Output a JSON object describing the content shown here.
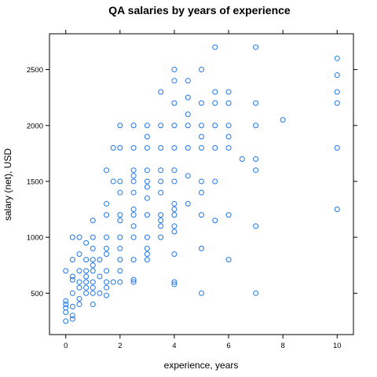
{
  "chart_data": {
    "type": "scatter",
    "title": "QA salaries by years of experience",
    "xlabel": "experience, years",
    "ylabel": "salary (net), USD",
    "xlim": [
      -0.6,
      10.6
    ],
    "ylim": [
      130,
      2820
    ],
    "xticks": [
      0,
      2,
      4,
      6,
      8,
      10
    ],
    "yticks": [
      500,
      1000,
      1500,
      2000,
      2500
    ],
    "grid": false,
    "legend": "none",
    "point_color": "#1f77e8",
    "points": [
      [
        0,
        250
      ],
      [
        0,
        330
      ],
      [
        0,
        370
      ],
      [
        0,
        400
      ],
      [
        0,
        430
      ],
      [
        0,
        700
      ],
      [
        0.25,
        270
      ],
      [
        0.25,
        300
      ],
      [
        0.25,
        380
      ],
      [
        0.25,
        500
      ],
      [
        0.25,
        620
      ],
      [
        0.25,
        650
      ],
      [
        0.25,
        800
      ],
      [
        0.25,
        1000
      ],
      [
        0.5,
        400
      ],
      [
        0.5,
        450
      ],
      [
        0.5,
        550
      ],
      [
        0.5,
        600
      ],
      [
        0.5,
        700
      ],
      [
        0.5,
        850
      ],
      [
        0.5,
        1000
      ],
      [
        0.75,
        500
      ],
      [
        0.75,
        550
      ],
      [
        0.75,
        600
      ],
      [
        0.75,
        650
      ],
      [
        0.75,
        700
      ],
      [
        0.75,
        800
      ],
      [
        0.75,
        950
      ],
      [
        1,
        400
      ],
      [
        1,
        500
      ],
      [
        1,
        550
      ],
      [
        1,
        600
      ],
      [
        1,
        700
      ],
      [
        1,
        750
      ],
      [
        1,
        800
      ],
      [
        1,
        900
      ],
      [
        1,
        1000
      ],
      [
        1,
        1150
      ],
      [
        1.25,
        500
      ],
      [
        1.25,
        650
      ],
      [
        1.25,
        800
      ],
      [
        1.5,
        480
      ],
      [
        1.5,
        550
      ],
      [
        1.5,
        600
      ],
      [
        1.5,
        700
      ],
      [
        1.5,
        850
      ],
      [
        1.5,
        900
      ],
      [
        1.5,
        1000
      ],
      [
        1.5,
        1200
      ],
      [
        1.5,
        1300
      ],
      [
        1.5,
        1600
      ],
      [
        1.75,
        600
      ],
      [
        1.75,
        1500
      ],
      [
        1.75,
        1800
      ],
      [
        2,
        600
      ],
      [
        2,
        700
      ],
      [
        2,
        800
      ],
      [
        2,
        900
      ],
      [
        2,
        1000
      ],
      [
        2,
        1150
      ],
      [
        2,
        1200
      ],
      [
        2,
        1400
      ],
      [
        2,
        1500
      ],
      [
        2,
        1800
      ],
      [
        2,
        2000
      ],
      [
        2.5,
        600
      ],
      [
        2.5,
        620
      ],
      [
        2.5,
        800
      ],
      [
        2.5,
        1000
      ],
      [
        2.5,
        1100
      ],
      [
        2.5,
        1200
      ],
      [
        2.5,
        1250
      ],
      [
        2.5,
        1400
      ],
      [
        2.5,
        1500
      ],
      [
        2.5,
        1550
      ],
      [
        2.5,
        1600
      ],
      [
        2.5,
        1800
      ],
      [
        2.5,
        2000
      ],
      [
        3,
        800
      ],
      [
        3,
        850
      ],
      [
        3,
        900
      ],
      [
        3,
        1000
      ],
      [
        3,
        1200
      ],
      [
        3,
        1350
      ],
      [
        3,
        1450
      ],
      [
        3,
        1500
      ],
      [
        3,
        1600
      ],
      [
        3,
        1800
      ],
      [
        3,
        1900
      ],
      [
        3,
        2000
      ],
      [
        3.5,
        1000
      ],
      [
        3.5,
        1100
      ],
      [
        3.5,
        1150
      ],
      [
        3.5,
        1200
      ],
      [
        3.5,
        1400
      ],
      [
        3.5,
        1500
      ],
      [
        3.5,
        1600
      ],
      [
        3.5,
        1800
      ],
      [
        3.5,
        2000
      ],
      [
        3.5,
        2300
      ],
      [
        4,
        580
      ],
      [
        4,
        600
      ],
      [
        4,
        850
      ],
      [
        4,
        1050
      ],
      [
        4,
        1100
      ],
      [
        4,
        1200
      ],
      [
        4,
        1250
      ],
      [
        4,
        1300
      ],
      [
        4,
        1500
      ],
      [
        4,
        1600
      ],
      [
        4,
        1800
      ],
      [
        4,
        2000
      ],
      [
        4,
        2200
      ],
      [
        4,
        2400
      ],
      [
        4,
        2500
      ],
      [
        4.5,
        1300
      ],
      [
        4.5,
        1550
      ],
      [
        4.5,
        1800
      ],
      [
        4.5,
        2000
      ],
      [
        4.5,
        2100
      ],
      [
        4.5,
        2250
      ],
      [
        4.5,
        2400
      ],
      [
        5,
        500
      ],
      [
        5,
        900
      ],
      [
        5,
        1200
      ],
      [
        5,
        1400
      ],
      [
        5,
        1500
      ],
      [
        5,
        1800
      ],
      [
        5,
        1900
      ],
      [
        5,
        2000
      ],
      [
        5,
        2200
      ],
      [
        5,
        2500
      ],
      [
        5.5,
        1150
      ],
      [
        5.5,
        1500
      ],
      [
        5.5,
        1800
      ],
      [
        5.5,
        2000
      ],
      [
        5.5,
        2200
      ],
      [
        5.5,
        2300
      ],
      [
        5.5,
        2700
      ],
      [
        6,
        800
      ],
      [
        6,
        1200
      ],
      [
        6,
        1800
      ],
      [
        6,
        1900
      ],
      [
        6,
        2000
      ],
      [
        6,
        2200
      ],
      [
        6,
        2300
      ],
      [
        6.5,
        1700
      ],
      [
        7,
        500
      ],
      [
        7,
        1100
      ],
      [
        7,
        1600
      ],
      [
        7,
        1700
      ],
      [
        7,
        2000
      ],
      [
        7,
        2200
      ],
      [
        7,
        2700
      ],
      [
        8,
        2050
      ],
      [
        10,
        1250
      ],
      [
        10,
        1800
      ],
      [
        10,
        2200
      ],
      [
        10,
        2300
      ],
      [
        10,
        2450
      ],
      [
        10,
        2600
      ]
    ]
  }
}
